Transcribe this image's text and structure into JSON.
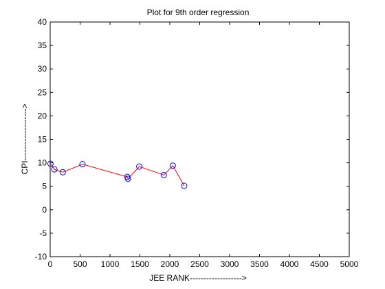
{
  "chart_data": {
    "type": "line",
    "title": "Plot for 9th order regression",
    "xlabel": "JEE RANK------------------->",
    "ylabel": "CPI------------------->",
    "xlim": [
      0,
      5000
    ],
    "ylim": [
      -10,
      40
    ],
    "xticks": [
      0,
      500,
      1000,
      1500,
      2000,
      2500,
      3000,
      3500,
      4000,
      4500,
      5000
    ],
    "yticks": [
      -10,
      -5,
      0,
      5,
      10,
      15,
      20,
      25,
      30,
      35,
      40
    ],
    "grid": false,
    "legend": "none",
    "series": [
      {
        "line_color": "#ff0000",
        "marker": "circle",
        "marker_color": "#0000ff",
        "x": [
          5,
          70,
          210,
          540,
          1290,
          1300,
          1490,
          1900,
          2050,
          2240
        ],
        "y": [
          9.8,
          8.6,
          8.0,
          9.7,
          7.0,
          6.6,
          9.2,
          7.4,
          9.4,
          5.1
        ]
      }
    ]
  }
}
